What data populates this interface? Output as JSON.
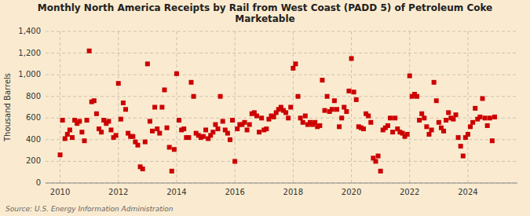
{
  "chart_data": {
    "type": "scatter",
    "title": "Monthly North America Receipts by Rail from West Coast (PADD 5) of Petroleum Coke\nMarketable",
    "ylabel": "Thousand Barrels",
    "source": "Source: U.S. Energy Information Administration",
    "color": "#cc0000",
    "marker": "square",
    "grid": true,
    "xlim": [
      2009.5,
      2025.7
    ],
    "xticks": [
      2010,
      2012,
      2014,
      2016,
      2018,
      2020,
      2022,
      2024
    ],
    "ylim": [
      0,
      1400
    ],
    "yticks": [
      0,
      200,
      400,
      600,
      800,
      {
        "value": 1000,
        "label": "1,000"
      },
      {
        "value": 1200,
        "label": "1,200"
      },
      {
        "value": 1400,
        "label": "1,400"
      }
    ],
    "x": [
      2010,
      2010.083333333333,
      2010.166666666667,
      2010.25,
      2010.333333333333,
      2010.416666666667,
      2010.5,
      2010.583333333333,
      2010.666666666667,
      2010.75,
      2010.833333333333,
      2010.916666666667,
      2011,
      2011.083333333333,
      2011.166666666667,
      2011.25,
      2011.333333333333,
      2011.416666666667,
      2011.5,
      2011.583333333333,
      2011.666666666667,
      2011.75,
      2011.833333333333,
      2011.916666666667,
      2012,
      2012.083333333333,
      2012.166666666667,
      2012.25,
      2012.333333333333,
      2012.416666666667,
      2012.5,
      2012.583333333333,
      2012.666666666667,
      2012.75,
      2012.833333333333,
      2012.916666666667,
      2013,
      2013.083333333333,
      2013.166666666667,
      2013.25,
      2013.333333333333,
      2013.416666666667,
      2013.5,
      2013.583333333333,
      2013.666666666667,
      2013.75,
      2013.833333333333,
      2013.916666666667,
      2014,
      2014.083333333333,
      2014.166666666667,
      2014.25,
      2014.333333333333,
      2014.416666666667,
      2014.5,
      2014.583333333333,
      2014.666666666667,
      2014.75,
      2014.833333333333,
      2014.916666666667,
      2015,
      2015.083333333333,
      2015.166666666667,
      2015.25,
      2015.333333333333,
      2015.416666666667,
      2015.5,
      2015.583333333333,
      2015.666666666667,
      2015.75,
      2015.833333333333,
      2015.916666666667,
      2016,
      2016.083333333333,
      2016.166666666667,
      2016.25,
      2016.333333333333,
      2016.416666666667,
      2016.5,
      2016.583333333333,
      2016.666666666667,
      2016.75,
      2016.833333333333,
      2016.916666666667,
      2017,
      2017.083333333333,
      2017.166666666667,
      2017.25,
      2017.333333333333,
      2017.416666666667,
      2017.5,
      2017.583333333333,
      2017.666666666667,
      2017.75,
      2017.833333333333,
      2017.916666666667,
      2018,
      2018.083333333333,
      2018.166666666667,
      2018.25,
      2018.333333333333,
      2018.416666666667,
      2018.5,
      2018.583333333333,
      2018.666666666667,
      2018.75,
      2018.833333333333,
      2018.916666666667,
      2019,
      2019.083333333333,
      2019.166666666667,
      2019.25,
      2019.333333333333,
      2019.416666666667,
      2019.5,
      2019.583333333333,
      2019.666666666667,
      2019.75,
      2019.833333333333,
      2019.916666666667,
      2020,
      2020.083333333333,
      2020.166666666667,
      2020.25,
      2020.333333333333,
      2020.416666666667,
      2020.5,
      2020.583333333333,
      2020.666666666667,
      2020.75,
      2020.833333333333,
      2020.916666666667,
      2021,
      2021.083333333333,
      2021.166666666667,
      2021.25,
      2021.333333333333,
      2021.416666666667,
      2021.5,
      2021.583333333333,
      2021.666666666667,
      2021.75,
      2021.833333333333,
      2021.916666666667,
      2022,
      2022.083333333333,
      2022.166666666667,
      2022.25,
      2022.333333333333,
      2022.416666666667,
      2022.5,
      2022.583333333333,
      2022.666666666667,
      2022.75,
      2022.833333333333,
      2022.916666666667,
      2023,
      2023.083333333333,
      2023.166666666667,
      2023.25,
      2023.333333333333,
      2023.416666666667,
      2023.5,
      2023.583333333333,
      2023.666666666667,
      2023.75,
      2023.833333333333,
      2023.916666666667,
      2024,
      2024.083333333333,
      2024.166666666667,
      2024.25,
      2024.333333333333,
      2024.416666666667,
      2024.5,
      2024.583333333333,
      2024.666666666667,
      2024.75,
      2024.833333333333,
      2024.916666666667
    ],
    "values": [
      260,
      580,
      410,
      450,
      490,
      420,
      580,
      550,
      570,
      470,
      390,
      580,
      1220,
      750,
      760,
      640,
      500,
      470,
      580,
      550,
      570,
      490,
      420,
      440,
      920,
      590,
      740,
      680,
      460,
      430,
      430,
      380,
      350,
      150,
      130,
      380,
      1100,
      570,
      480,
      700,
      500,
      460,
      700,
      860,
      510,
      330,
      110,
      310,
      1010,
      580,
      490,
      500,
      420,
      420,
      930,
      800,
      460,
      440,
      420,
      430,
      490,
      410,
      440,
      470,
      540,
      500,
      800,
      570,
      490,
      460,
      400,
      580,
      200,
      500,
      540,
      540,
      560,
      490,
      540,
      640,
      650,
      620,
      470,
      600,
      490,
      500,
      590,
      620,
      610,
      650,
      680,
      700,
      670,
      650,
      600,
      700,
      1060,
      1100,
      800,
      600,
      560,
      620,
      540,
      560,
      540,
      560,
      520,
      530,
      950,
      670,
      800,
      660,
      680,
      760,
      680,
      520,
      600,
      700,
      660,
      850,
      1150,
      840,
      770,
      520,
      510,
      500,
      640,
      620,
      560,
      230,
      200,
      250,
      110,
      490,
      510,
      530,
      600,
      470,
      600,
      500,
      470,
      460,
      430,
      450,
      990,
      800,
      820,
      800,
      580,
      640,
      600,
      520,
      450,
      490,
      930,
      760,
      560,
      510,
      480,
      580,
      650,
      600,
      590,
      630,
      420,
      340,
      250,
      420,
      450,
      520,
      560,
      690,
      590,
      610,
      780,
      600,
      530,
      600,
      390,
      610
    ]
  }
}
